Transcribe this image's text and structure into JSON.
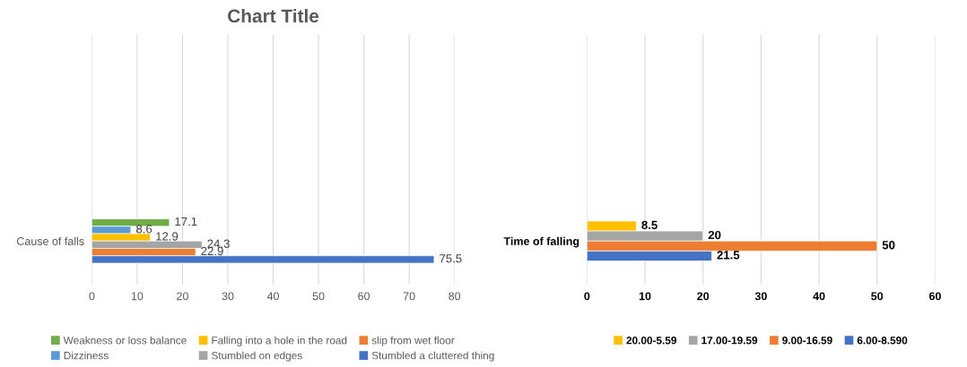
{
  "chart_data": [
    {
      "type": "bar",
      "orientation": "horizontal",
      "title": "Chart Title",
      "categories": [
        "Cause of falls"
      ],
      "series": [
        {
          "name": "Weakness or loss balance",
          "color": "#70ad47",
          "values": [
            17.1
          ]
        },
        {
          "name": "Dizziness",
          "color": "#5b9bd5",
          "values": [
            8.6
          ]
        },
        {
          "name": "Falling into a hole in the road",
          "color": "#ffc000",
          "values": [
            12.9
          ]
        },
        {
          "name": "Stumbled on edges",
          "color": "#a5a5a5",
          "values": [
            24.3
          ]
        },
        {
          "name": "slip from wet floor",
          "color": "#ed7d31",
          "values": [
            22.9
          ]
        },
        {
          "name": "Stumbled a cluttered thing",
          "color": "#4472c4",
          "values": [
            75.5
          ]
        }
      ],
      "xlim": [
        0,
        80
      ],
      "xticks": [
        0,
        10,
        20,
        30,
        40,
        50,
        60,
        70,
        80
      ],
      "grid": "x",
      "legend": "bottom",
      "data_labels": true
    },
    {
      "type": "bar",
      "orientation": "horizontal",
      "categories": [
        "Time of falling"
      ],
      "series": [
        {
          "name": "20.00-5.59",
          "color": "#ffc000",
          "values": [
            8.5
          ]
        },
        {
          "name": "17.00-19.59",
          "color": "#a5a5a5",
          "values": [
            20
          ]
        },
        {
          "name": "9.00-16.59",
          "color": "#ed7d31",
          "values": [
            50
          ]
        },
        {
          "name": "6.00-8.590",
          "color": "#4472c4",
          "values": [
            21.5
          ]
        }
      ],
      "xlim": [
        0,
        60
      ],
      "xticks": [
        0,
        10,
        20,
        30,
        40,
        50,
        60
      ],
      "grid": "x",
      "legend": "bottom",
      "data_labels": true
    }
  ]
}
